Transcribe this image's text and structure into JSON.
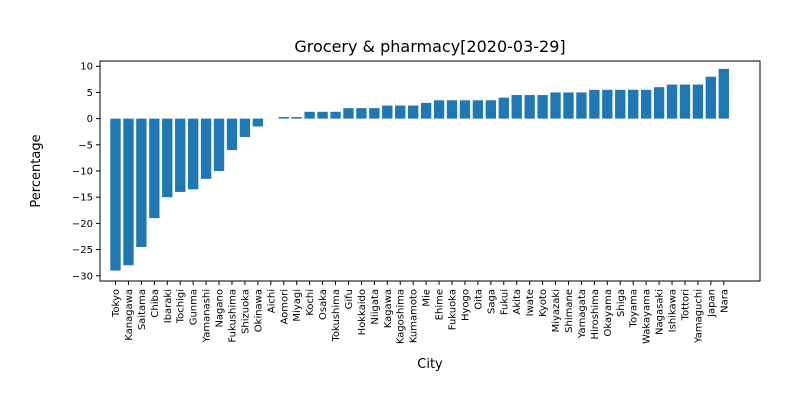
{
  "chart_data": {
    "type": "bar",
    "title": "Grocery & pharmacy[2020-03-29]",
    "xlabel": "City",
    "ylabel": "Percentage",
    "ylim": [
      -31,
      11
    ],
    "yticks": [
      10,
      5,
      0,
      -5,
      -10,
      -15,
      -20,
      -25,
      -30
    ],
    "bar_color": "#1f77b4",
    "grid": false,
    "categories": [
      "Tokyo",
      "Kanagawa",
      "Saitama",
      "Chiba",
      "Ibaraki",
      "Tochigi",
      "Gunma",
      "Yamanashi",
      "Nagano",
      "Fukushima",
      "Shizuoka",
      "Okinawa",
      "Aichi",
      "Aomori",
      "Miyagi",
      "Kochi",
      "Osaka",
      "Tokushima",
      "Gifu",
      "Hokkaido",
      "Niigata",
      "Kagawa",
      "Kagoshima",
      "Kumamoto",
      "Mie",
      "Ehime",
      "Fukuoka",
      "Hyogo",
      "Oita",
      "Saga",
      "Fukui",
      "Akita",
      "Iwate",
      "Kyoto",
      "Miyazaki",
      "Shimane",
      "Yamagata",
      "Hiroshima",
      "Okayama",
      "Shiga",
      "Toyama",
      "Wakayama",
      "Nagasaki",
      "Ishikawa",
      "Tottori",
      "Yamaguchi",
      "Japan",
      "Nara"
    ],
    "values": [
      -29,
      -28,
      -24.5,
      -19,
      -15,
      -14,
      -13.5,
      -11.5,
      -10,
      -6,
      -3.5,
      -1.5,
      0,
      0.3,
      0.3,
      1.3,
      1.3,
      1.3,
      2,
      2,
      2,
      2.5,
      2.5,
      2.5,
      3,
      3.5,
      3.5,
      3.5,
      3.5,
      3.5,
      4,
      4.5,
      4.5,
      4.5,
      5,
      5,
      5,
      5.5,
      5.5,
      5.5,
      5.5,
      5.5,
      6,
      6.5,
      6.5,
      6.5,
      8,
      9.5
    ]
  }
}
